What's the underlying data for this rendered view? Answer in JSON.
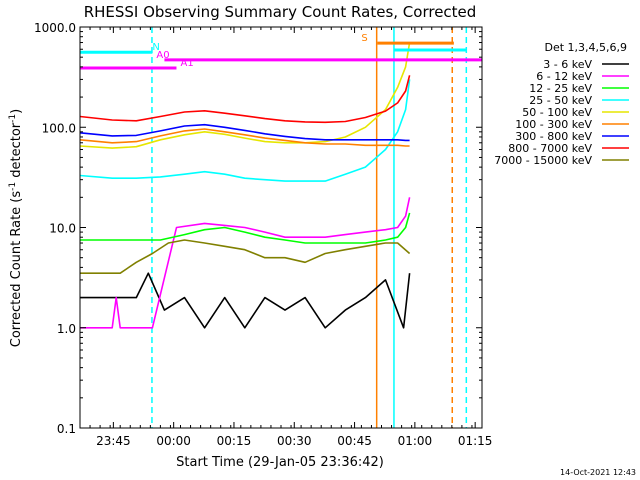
{
  "chart_data": {
    "type": "line",
    "title": "RHESSI Observing Summary Count Rates, Corrected",
    "xlabel": "Start Time (29-Jan-05 23:36:42)",
    "ylabel_parts": [
      "Corrected Count Rate (s",
      "-1",
      " detector",
      "-1",
      ")"
    ],
    "y_scale": "log",
    "ylim": [
      0.1,
      1000.0
    ],
    "y_tick_values": [
      0.1,
      1,
      10,
      100,
      1000
    ],
    "y_ticks": [
      "0.1",
      "1.0",
      "10.0",
      "100.0",
      "1000.0"
    ],
    "x_axis_unit": "minutes after 29-Jan-05 23:36:42",
    "xlim": [
      0,
      100
    ],
    "x_tick_values": [
      8.3,
      23.3,
      38.3,
      53.3,
      68.3,
      83.3,
      98.3
    ],
    "x_ticks": [
      "23:45",
      "00:00",
      "00:15",
      "00:30",
      "00:45",
      "01:00",
      "01:15"
    ],
    "legend_title": "Det 1,3,4,5,6,9",
    "legend_position": "right",
    "timestamp": "14-Oct-2021 12:43",
    "series": [
      {
        "name": "3 - 6 keV",
        "color": "#000000",
        "x": [
          0,
          10,
          14,
          17,
          21,
          26,
          31,
          36,
          41,
          46,
          51,
          56,
          61,
          66,
          71,
          76,
          80.5,
          82
        ],
        "y": [
          2.0,
          2.0,
          2.0,
          3.5,
          1.5,
          2.0,
          1.0,
          2.0,
          1.0,
          2.0,
          1.5,
          2.0,
          1.0,
          1.5,
          2.0,
          3.0,
          1.0,
          3.5
        ]
      },
      {
        "name": "6 - 12 keV",
        "color": "#ff00ff",
        "x": [
          0,
          8,
          9,
          10,
          18,
          24,
          31,
          36,
          41,
          46,
          51,
          56,
          61,
          66,
          71,
          76,
          79,
          81,
          82
        ],
        "y": [
          1.0,
          1.0,
          2.0,
          1.0,
          1.0,
          10.0,
          11.0,
          10.5,
          10.0,
          9.0,
          8.0,
          8.0,
          8.0,
          8.5,
          9.0,
          9.5,
          10.0,
          13.0,
          20.0
        ]
      },
      {
        "name": "12 - 25 keV",
        "color": "#00ff00",
        "x": [
          0,
          8,
          14,
          20,
          26,
          31,
          36,
          41,
          46,
          51,
          56,
          61,
          66,
          71,
          76,
          79,
          81,
          82
        ],
        "y": [
          7.5,
          7.5,
          7.5,
          7.5,
          8.5,
          9.5,
          10.0,
          9.0,
          8.0,
          7.5,
          7.0,
          7.0,
          7.0,
          7.0,
          7.5,
          8.0,
          10.0,
          14.0
        ]
      },
      {
        "name": "25 - 50 keV",
        "color": "#00ffff",
        "x": [
          0,
          8,
          14,
          20,
          26,
          31,
          36,
          41,
          46,
          51,
          56,
          61,
          66,
          71,
          76,
          79,
          81,
          82
        ],
        "y": [
          33,
          31,
          31,
          32,
          34,
          36,
          34,
          31,
          30,
          29,
          29,
          29,
          34,
          40,
          60,
          90,
          150,
          300
        ]
      },
      {
        "name": "50 - 100 keV",
        "color": "#e6e600",
        "x": [
          0,
          8,
          14,
          20,
          26,
          31,
          36,
          41,
          46,
          51,
          56,
          61,
          66,
          71,
          76,
          79,
          81,
          82
        ],
        "y": [
          65,
          62,
          64,
          75,
          84,
          90,
          85,
          78,
          72,
          70,
          70,
          72,
          80,
          100,
          150,
          250,
          400,
          700
        ]
      },
      {
        "name": "100 - 300 keV",
        "color": "#ff8000",
        "x": [
          0,
          8,
          14,
          20,
          26,
          31,
          36,
          41,
          46,
          51,
          56,
          61,
          66,
          71,
          76,
          79,
          81,
          82
        ],
        "y": [
          75,
          70,
          72,
          82,
          92,
          96,
          90,
          84,
          78,
          74,
          70,
          68,
          68,
          66,
          66,
          66,
          65,
          65
        ]
      },
      {
        "name": "300 - 800 keV",
        "color": "#0000ff",
        "x": [
          0,
          8,
          14,
          20,
          26,
          31,
          36,
          41,
          46,
          51,
          56,
          61,
          66,
          71,
          76,
          79,
          81,
          82
        ],
        "y": [
          88,
          82,
          83,
          92,
          103,
          106,
          100,
          93,
          86,
          81,
          77,
          75,
          75,
          75,
          75,
          75,
          74,
          74
        ]
      },
      {
        "name": "800 - 7000 keV",
        "color": "#ff0000",
        "x": [
          0,
          8,
          14,
          20,
          26,
          31,
          36,
          41,
          46,
          51,
          56,
          61,
          66,
          71,
          76,
          79,
          81,
          82
        ],
        "y": [
          128,
          118,
          116,
          128,
          142,
          146,
          138,
          130,
          122,
          116,
          113,
          112,
          114,
          125,
          145,
          175,
          230,
          330
        ]
      },
      {
        "name": "7000 - 15000 keV",
        "color": "#808000",
        "x": [
          0,
          8,
          10,
          14,
          18,
          22,
          26,
          31,
          36,
          41,
          46,
          51,
          56,
          61,
          66,
          71,
          76,
          79,
          82
        ],
        "y": [
          3.5,
          3.5,
          3.5,
          4.5,
          5.5,
          7.0,
          7.5,
          7.0,
          6.5,
          6.0,
          5.0,
          5.0,
          4.5,
          5.5,
          6.0,
          6.5,
          7.0,
          7.0,
          5.5
        ]
      }
    ],
    "attenuator_bars": [
      {
        "label": "N",
        "color": "#00ffff",
        "x_start": 0,
        "x_end": 18,
        "y": 560,
        "label_x": 18
      },
      {
        "label": "A0",
        "color": "#ff00ff",
        "x_start": 21,
        "x_end": 100,
        "y": 470,
        "label_x": 19
      },
      {
        "label": "A1",
        "color": "#ff00ff",
        "x_start": 0,
        "x_end": 24,
        "y": 390,
        "label_x": 25
      },
      {
        "label": "S",
        "color": "#ff8000",
        "x_start": 74,
        "x_end": 93,
        "y": 690,
        "label_x": 70
      },
      {
        "label": "",
        "color": "#00ffff",
        "x_start": 78,
        "x_end": 96,
        "y": 590,
        "label_x": 78
      }
    ],
    "vertical_markers": [
      {
        "x": 17.9,
        "color": "#00ffff",
        "style": "dashed"
      },
      {
        "x": 73.8,
        "color": "#ff8000",
        "style": "solid"
      },
      {
        "x": 78.1,
        "color": "#00ffff",
        "style": "solid"
      },
      {
        "x": 92.6,
        "color": "#ff8000",
        "style": "dashed"
      },
      {
        "x": 96.1,
        "color": "#00ffff",
        "style": "dashed"
      }
    ]
  }
}
